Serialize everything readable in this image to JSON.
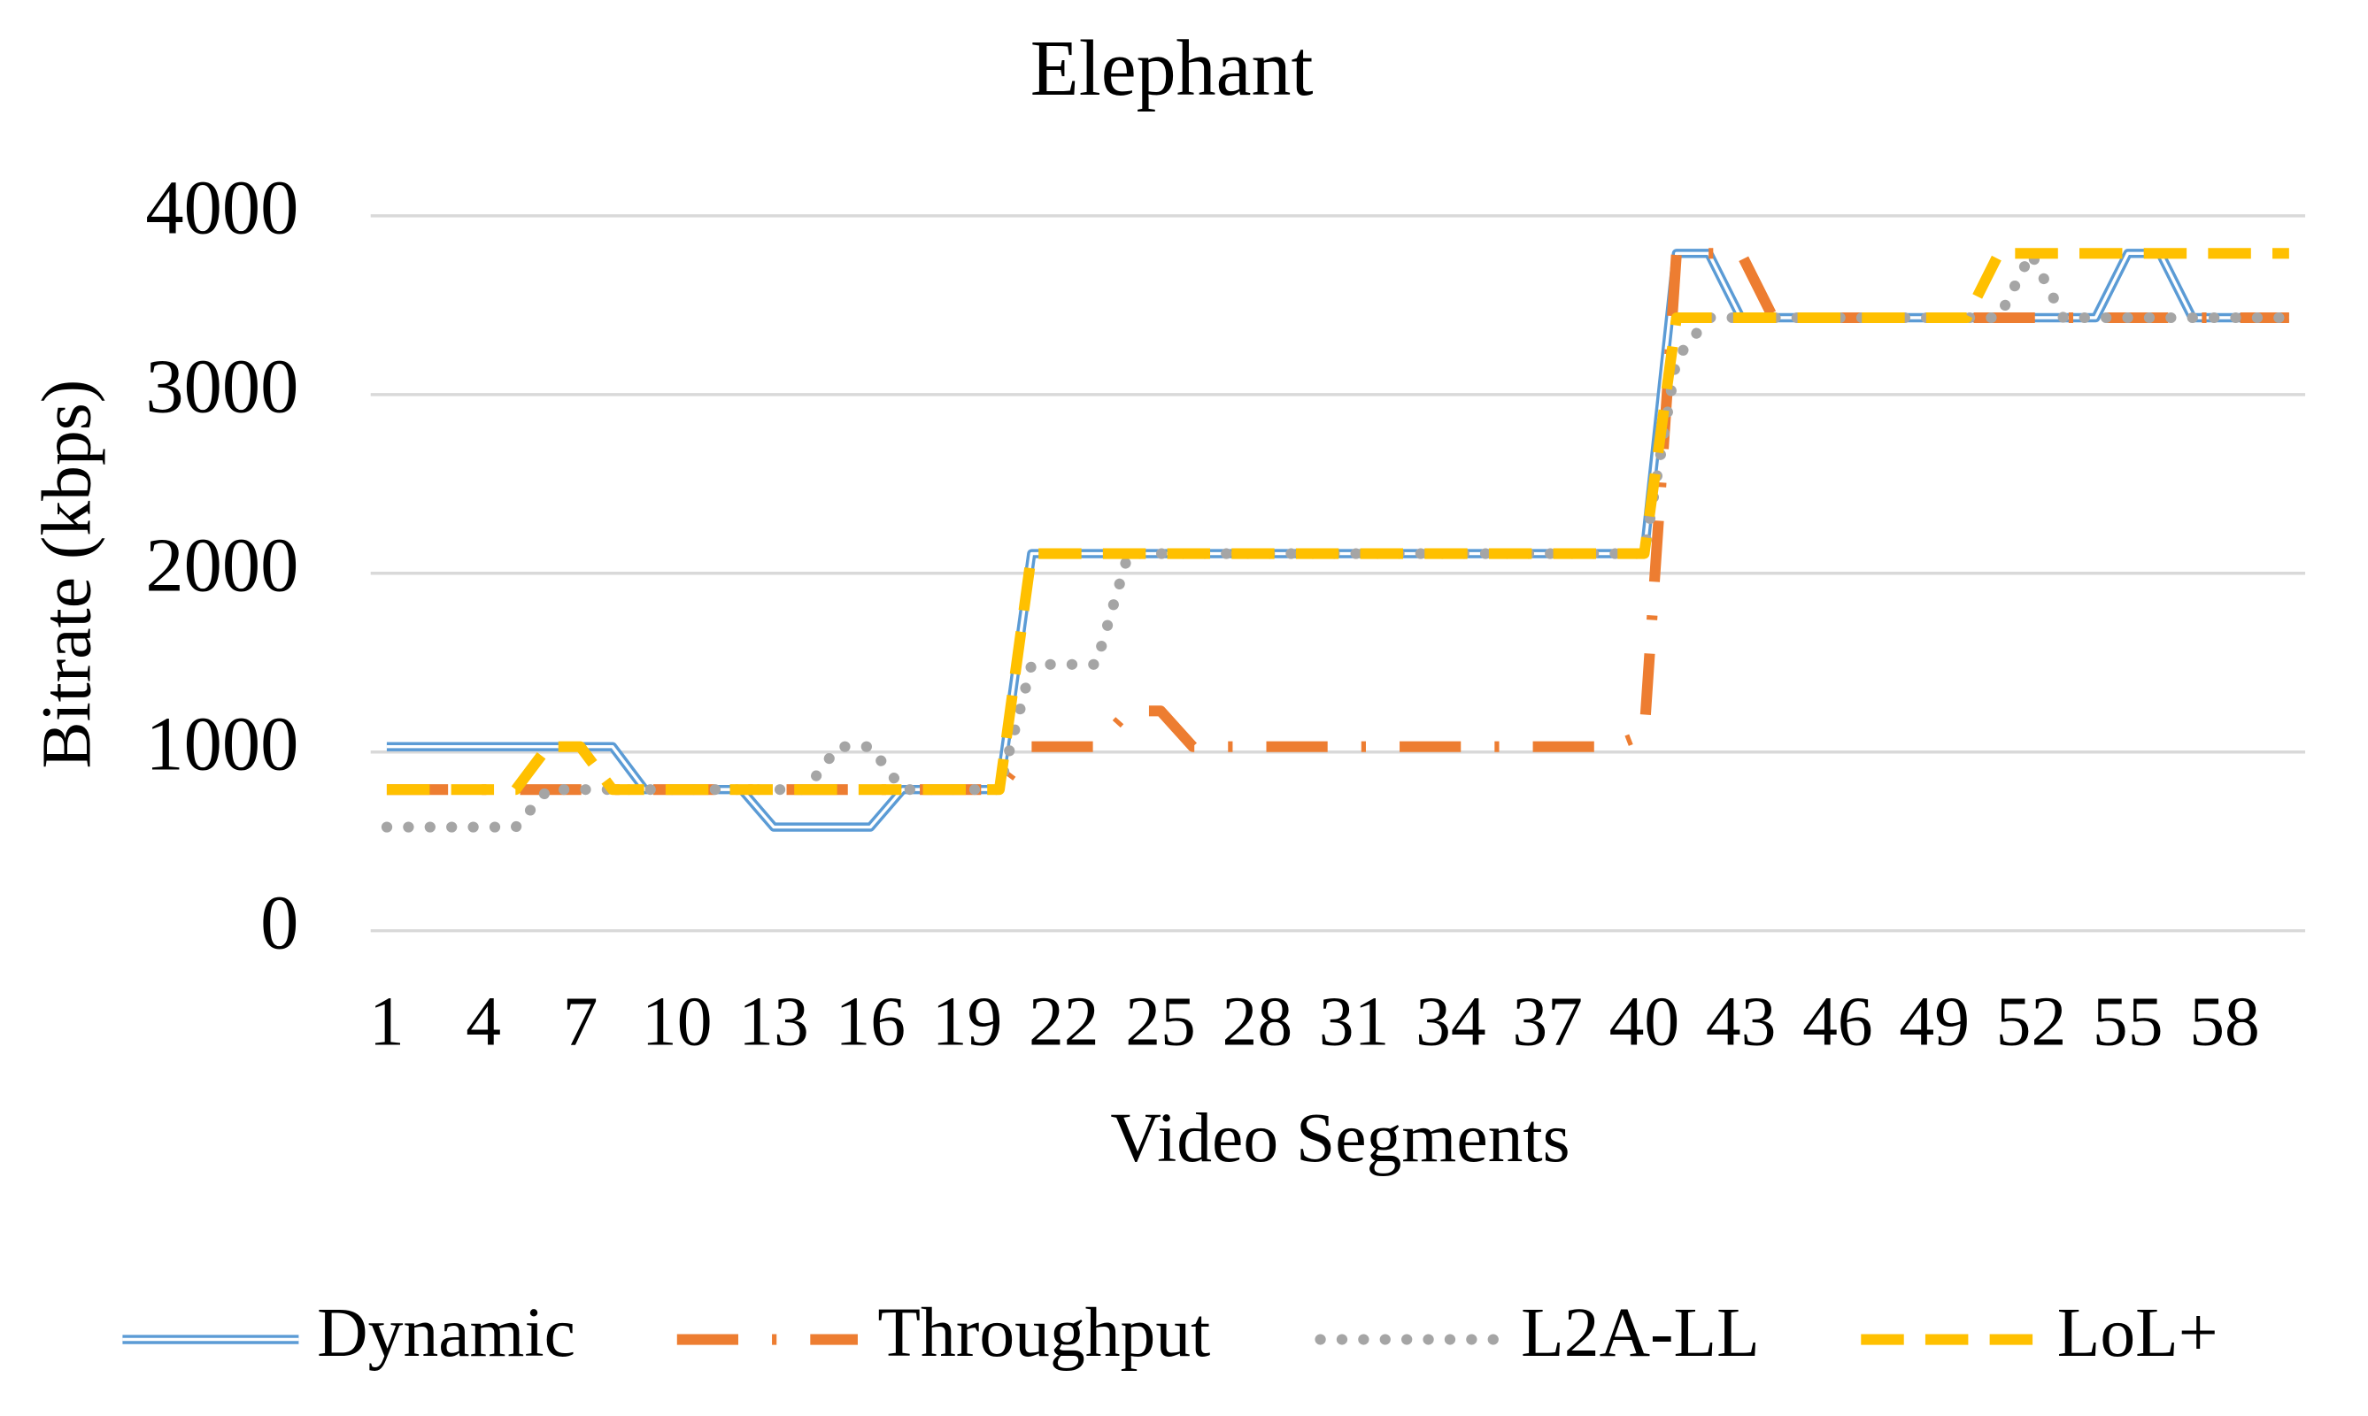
{
  "chart_data": {
    "type": "line",
    "title": "Elephant",
    "x_label": "Video Segments",
    "y_label": "Bitrate (kbps)",
    "categories": [
      1,
      null,
      null,
      4,
      null,
      null,
      7,
      null,
      null,
      10,
      null,
      null,
      13,
      null,
      null,
      16,
      null,
      null,
      19,
      null,
      null,
      22,
      null,
      null,
      25,
      null,
      null,
      28,
      null,
      null,
      31,
      null,
      null,
      34,
      null,
      null,
      37,
      null,
      null,
      40,
      null,
      null,
      43,
      null,
      null,
      46,
      null,
      null,
      49,
      null,
      null,
      52,
      null,
      null,
      55,
      null,
      null,
      58,
      null,
      null
    ],
    "ylim": [
      0,
      4000
    ],
    "yticks": [
      0,
      1000,
      2000,
      3000,
      4000
    ],
    "grid": true,
    "legend": "bottom",
    "series": [
      {
        "name": "Dynamic",
        "color": "#5b9bd5",
        "values": [
          1030,
          1030,
          1030,
          1030,
          1030,
          1030,
          1030,
          1030,
          790,
          790,
          790,
          790,
          580,
          580,
          580,
          580,
          790,
          790,
          790,
          790,
          2110,
          2110,
          2110,
          2110,
          2110,
          2110,
          2110,
          2110,
          2110,
          2110,
          2110,
          2110,
          2110,
          2110,
          2110,
          2110,
          2110,
          2110,
          2110,
          2110,
          3790,
          3790,
          3430,
          3430,
          3430,
          3430,
          3430,
          3430,
          3430,
          3430,
          3430,
          3430,
          3430,
          3430,
          3790,
          3790,
          3430,
          3430,
          3430,
          3430
        ]
      },
      {
        "name": "Throughput",
        "color": "#ed7d31",
        "values": [
          790,
          790,
          790,
          790,
          790,
          790,
          790,
          790,
          790,
          790,
          790,
          790,
          790,
          790,
          790,
          790,
          790,
          790,
          790,
          790,
          1030,
          1030,
          1030,
          1230,
          1230,
          1030,
          1030,
          1030,
          1030,
          1030,
          1030,
          1030,
          1030,
          1030,
          1030,
          1030,
          1030,
          1030,
          1030,
          1100,
          3790,
          3790,
          3790,
          3430,
          3430,
          3430,
          3430,
          3430,
          3430,
          3430,
          3430,
          3430,
          3430,
          3430,
          3430,
          3430,
          3430,
          3430,
          3430,
          3430
        ]
      },
      {
        "name": "L2A-LL",
        "color": "#a5a5a5",
        "values": [
          580,
          580,
          580,
          580,
          580,
          790,
          790,
          790,
          790,
          790,
          790,
          790,
          790,
          790,
          1030,
          1030,
          790,
          790,
          790,
          790,
          1490,
          1490,
          1490,
          2110,
          2110,
          2110,
          2110,
          2110,
          2110,
          2110,
          2110,
          2110,
          2110,
          2110,
          2110,
          2110,
          2110,
          2110,
          2110,
          2110,
          3200,
          3430,
          3430,
          3430,
          3430,
          3430,
          3430,
          3430,
          3430,
          3430,
          3430,
          3790,
          3430,
          3430,
          3430,
          3430,
          3430,
          3430,
          3430,
          3430
        ]
      },
      {
        "name": "LoL+",
        "color": "#ffc000",
        "values": [
          790,
          790,
          790,
          790,
          790,
          1030,
          1030,
          790,
          790,
          790,
          790,
          790,
          790,
          790,
          790,
          790,
          790,
          790,
          790,
          790,
          2110,
          2110,
          2110,
          2110,
          2110,
          2110,
          2110,
          2110,
          2110,
          2110,
          2110,
          2110,
          2110,
          2110,
          2110,
          2110,
          2110,
          2110,
          2110,
          2110,
          3430,
          3430,
          3430,
          3430,
          3430,
          3430,
          3430,
          3430,
          3430,
          3430,
          3790,
          3790,
          3790,
          3790,
          3790,
          3790,
          3790,
          3790,
          3790,
          3790
        ]
      }
    ]
  }
}
